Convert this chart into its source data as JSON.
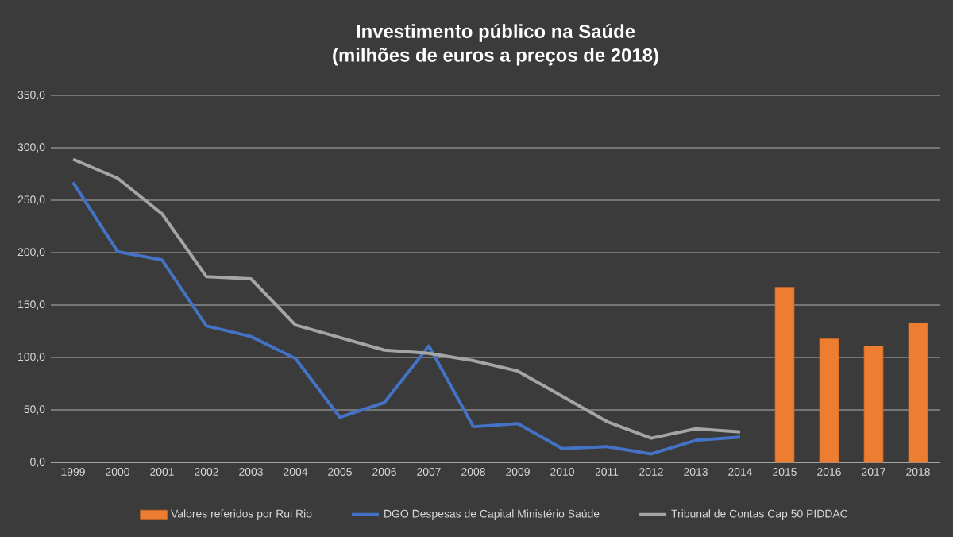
{
  "chart_data": {
    "type": "line",
    "title": "Investimento público na Saúde",
    "subtitle": "(milhões de euros a preços de 2018)",
    "categories": [
      "1999",
      "2000",
      "2001",
      "2002",
      "2003",
      "2004",
      "2005",
      "2006",
      "2007",
      "2008",
      "2009",
      "2010",
      "2011",
      "2012",
      "2013",
      "2014",
      "2015",
      "2016",
      "2017",
      "2018"
    ],
    "series": [
      {
        "name": "Valores referidos por Rui Rio",
        "type": "bar",
        "color": "#ed7d31",
        "values": [
          null,
          null,
          null,
          null,
          null,
          null,
          null,
          null,
          null,
          null,
          null,
          null,
          null,
          null,
          null,
          null,
          167,
          118,
          111,
          133
        ]
      },
      {
        "name": "DGO Despesas de Capital Ministério Saúde",
        "color": "#4472c4",
        "values": [
          267,
          201,
          193,
          130,
          120,
          99,
          43,
          57,
          111,
          34,
          37,
          13,
          15,
          8,
          21,
          24,
          null,
          null,
          null,
          null
        ]
      },
      {
        "name": "Tribunal de Contas Cap 50 PIDDAC",
        "color": "#a5a5a5",
        "values": [
          289,
          271,
          237,
          177,
          175,
          131,
          119,
          107,
          104,
          97,
          87,
          63,
          39,
          23,
          32,
          29,
          null,
          null,
          null,
          null
        ]
      }
    ],
    "ylim": [
      0,
      350
    ],
    "yticks": [
      {
        "value": 0,
        "label": "0,0"
      },
      {
        "value": 50,
        "label": "50,0"
      },
      {
        "value": 100,
        "label": "100,0"
      },
      {
        "value": 150,
        "label": "150,0"
      },
      {
        "value": 200,
        "label": "200,0"
      },
      {
        "value": 250,
        "label": "250,0"
      },
      {
        "value": 300,
        "label": "300,0"
      },
      {
        "value": 350,
        "label": "350,0"
      }
    ],
    "grid": "y",
    "legend": "bottom"
  }
}
